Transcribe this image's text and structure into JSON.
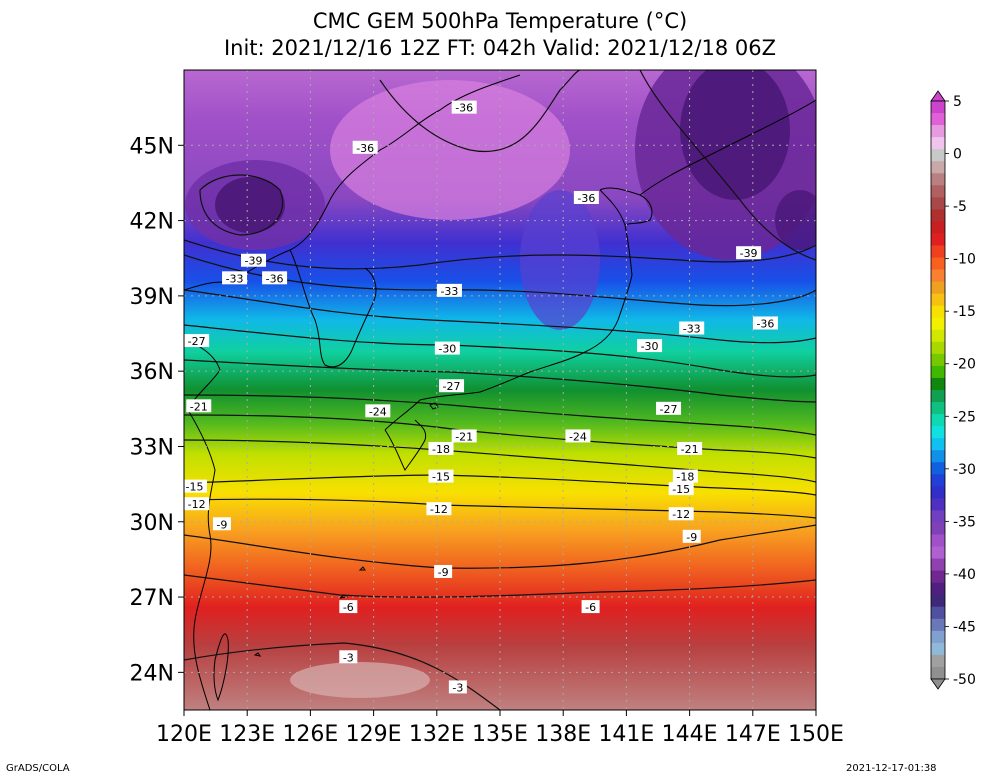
{
  "title_line1": "CMC GEM 500hPa Temperature (°C)",
  "title_line2": "Init: 2021/12/16 12Z  FT: 042h  Valid: 2021/12/18 06Z",
  "footer_left": "GrADS/COLA",
  "footer_right": "2021-12-17-01:38",
  "map": {
    "lon_range": [
      120,
      150
    ],
    "lat_range": [
      22.5,
      48
    ],
    "lon_ticks": [
      "120E",
      "123E",
      "126E",
      "129E",
      "132E",
      "135E",
      "138E",
      "141E",
      "144E",
      "147E",
      "150E"
    ],
    "lat_ticks": [
      "24N",
      "27N",
      "30N",
      "33N",
      "36N",
      "39N",
      "42N",
      "45N"
    ],
    "contour_labels": [
      {
        "text": "-36",
        "lon": 133.3,
        "lat": 46.5
      },
      {
        "text": "-36",
        "lon": 128.6,
        "lat": 44.9
      },
      {
        "text": "-36",
        "lon": 139.1,
        "lat": 42.9
      },
      {
        "text": "-39",
        "lon": 123.3,
        "lat": 40.4
      },
      {
        "text": "-33",
        "lon": 122.4,
        "lat": 39.7
      },
      {
        "text": "-36",
        "lon": 124.3,
        "lat": 39.7
      },
      {
        "text": "-39",
        "lon": 146.8,
        "lat": 40.7
      },
      {
        "text": "-33",
        "lon": 132.6,
        "lat": 39.2
      },
      {
        "text": "-33",
        "lon": 144.1,
        "lat": 37.7
      },
      {
        "text": "-36",
        "lon": 147.6,
        "lat": 37.9
      },
      {
        "text": "-27",
        "lon": 120.6,
        "lat": 37.2
      },
      {
        "text": "-30",
        "lon": 132.5,
        "lat": 36.9
      },
      {
        "text": "-30",
        "lon": 142.1,
        "lat": 37.0
      },
      {
        "text": "-27",
        "lon": 132.7,
        "lat": 35.4
      },
      {
        "text": "-21",
        "lon": 120.7,
        "lat": 34.6
      },
      {
        "text": "-24",
        "lon": 129.2,
        "lat": 34.4
      },
      {
        "text": "-27",
        "lon": 143.0,
        "lat": 34.5
      },
      {
        "text": "-21",
        "lon": 133.3,
        "lat": 33.4
      },
      {
        "text": "-24",
        "lon": 138.7,
        "lat": 33.4
      },
      {
        "text": "-18",
        "lon": 132.2,
        "lat": 32.9
      },
      {
        "text": "-21",
        "lon": 144.0,
        "lat": 32.9
      },
      {
        "text": "-15",
        "lon": 132.2,
        "lat": 31.8
      },
      {
        "text": "-18",
        "lon": 143.8,
        "lat": 31.8
      },
      {
        "text": "-15",
        "lon": 120.5,
        "lat": 31.4
      },
      {
        "text": "-15",
        "lon": 143.6,
        "lat": 31.3
      },
      {
        "text": "-12",
        "lon": 120.6,
        "lat": 30.7
      },
      {
        "text": "-12",
        "lon": 132.1,
        "lat": 30.5
      },
      {
        "text": "-12",
        "lon": 143.6,
        "lat": 30.3
      },
      {
        "text": "-9",
        "lon": 121.8,
        "lat": 29.9
      },
      {
        "text": "-9",
        "lon": 144.1,
        "lat": 29.4
      },
      {
        "text": "-9",
        "lon": 132.3,
        "lat": 28.0
      },
      {
        "text": "-6",
        "lon": 127.8,
        "lat": 26.6
      },
      {
        "text": "-6",
        "lon": 139.3,
        "lat": 26.6
      },
      {
        "text": "-3",
        "lon": 127.8,
        "lat": 24.6
      },
      {
        "text": "-3",
        "lon": 133.0,
        "lat": 23.4
      }
    ]
  },
  "colorbar": {
    "labels": [
      "5",
      "0",
      "-5",
      "-10",
      "-15",
      "-20",
      "-25",
      "-30",
      "-35",
      "-40",
      "-45",
      "-50"
    ],
    "colors": [
      "#cc44cc",
      "#e060d8",
      "#e89ae0",
      "#f0c4ec",
      "#c8c8c8",
      "#c8a8a8",
      "#b88080",
      "#b06060",
      "#a84848",
      "#b03030",
      "#c82020",
      "#e02020",
      "#f04020",
      "#f86020",
      "#f88030",
      "#f0a020",
      "#f8c010",
      "#f8e000",
      "#f0f000",
      "#d0e800",
      "#a8d800",
      "#78c800",
      "#40b800",
      "#108810",
      "#10a050",
      "#10c080",
      "#10d8b0",
      "#10e0e0",
      "#10c0f0",
      "#1090e8",
      "#1060e0",
      "#2040d8",
      "#3030c8",
      "#5030c0",
      "#7040c0",
      "#8040b8",
      "#a050c8",
      "#b060d0",
      "#9040b0",
      "#702890",
      "#502080",
      "#402878",
      "#5050a0",
      "#6878b8",
      "#80a0d0",
      "#90b8d8",
      "#a0a0a0",
      "#909090"
    ]
  },
  "colors": {
    "land_outline": "#000000",
    "contour": "#111111",
    "grid": "#aaaaaa"
  }
}
